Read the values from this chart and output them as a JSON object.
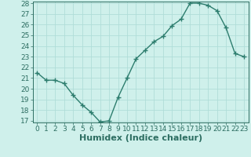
{
  "x": [
    0,
    1,
    2,
    3,
    4,
    5,
    6,
    7,
    8,
    9,
    10,
    11,
    12,
    13,
    14,
    15,
    16,
    17,
    18,
    19,
    20,
    21,
    22,
    23
  ],
  "y": [
    21.5,
    20.8,
    20.8,
    20.5,
    19.4,
    18.5,
    17.8,
    16.9,
    17.0,
    19.2,
    21.0,
    22.8,
    23.6,
    24.4,
    24.9,
    25.9,
    26.5,
    28.0,
    28.0,
    27.8,
    27.3,
    25.7,
    23.3,
    23.0
  ],
  "line_color": "#2d7d6e",
  "marker": "+",
  "bg_color": "#cff0eb",
  "grid_color": "#b0ddd8",
  "xlabel": "Humidex (Indice chaleur)",
  "ylim_min": 17,
  "ylim_max": 28,
  "xlim_min": -0.5,
  "xlim_max": 23.5,
  "yticks": [
    17,
    18,
    19,
    20,
    21,
    22,
    23,
    24,
    25,
    26,
    27,
    28
  ],
  "xticks": [
    0,
    1,
    2,
    3,
    4,
    5,
    6,
    7,
    8,
    9,
    10,
    11,
    12,
    13,
    14,
    15,
    16,
    17,
    18,
    19,
    20,
    21,
    22,
    23
  ],
  "tick_label_fontsize": 6.5,
  "xlabel_fontsize": 8,
  "axis_color": "#2d6e62",
  "spine_color": "#2d6e62",
  "line_width": 1.0,
  "marker_size": 4,
  "marker_edge_width": 1.0
}
